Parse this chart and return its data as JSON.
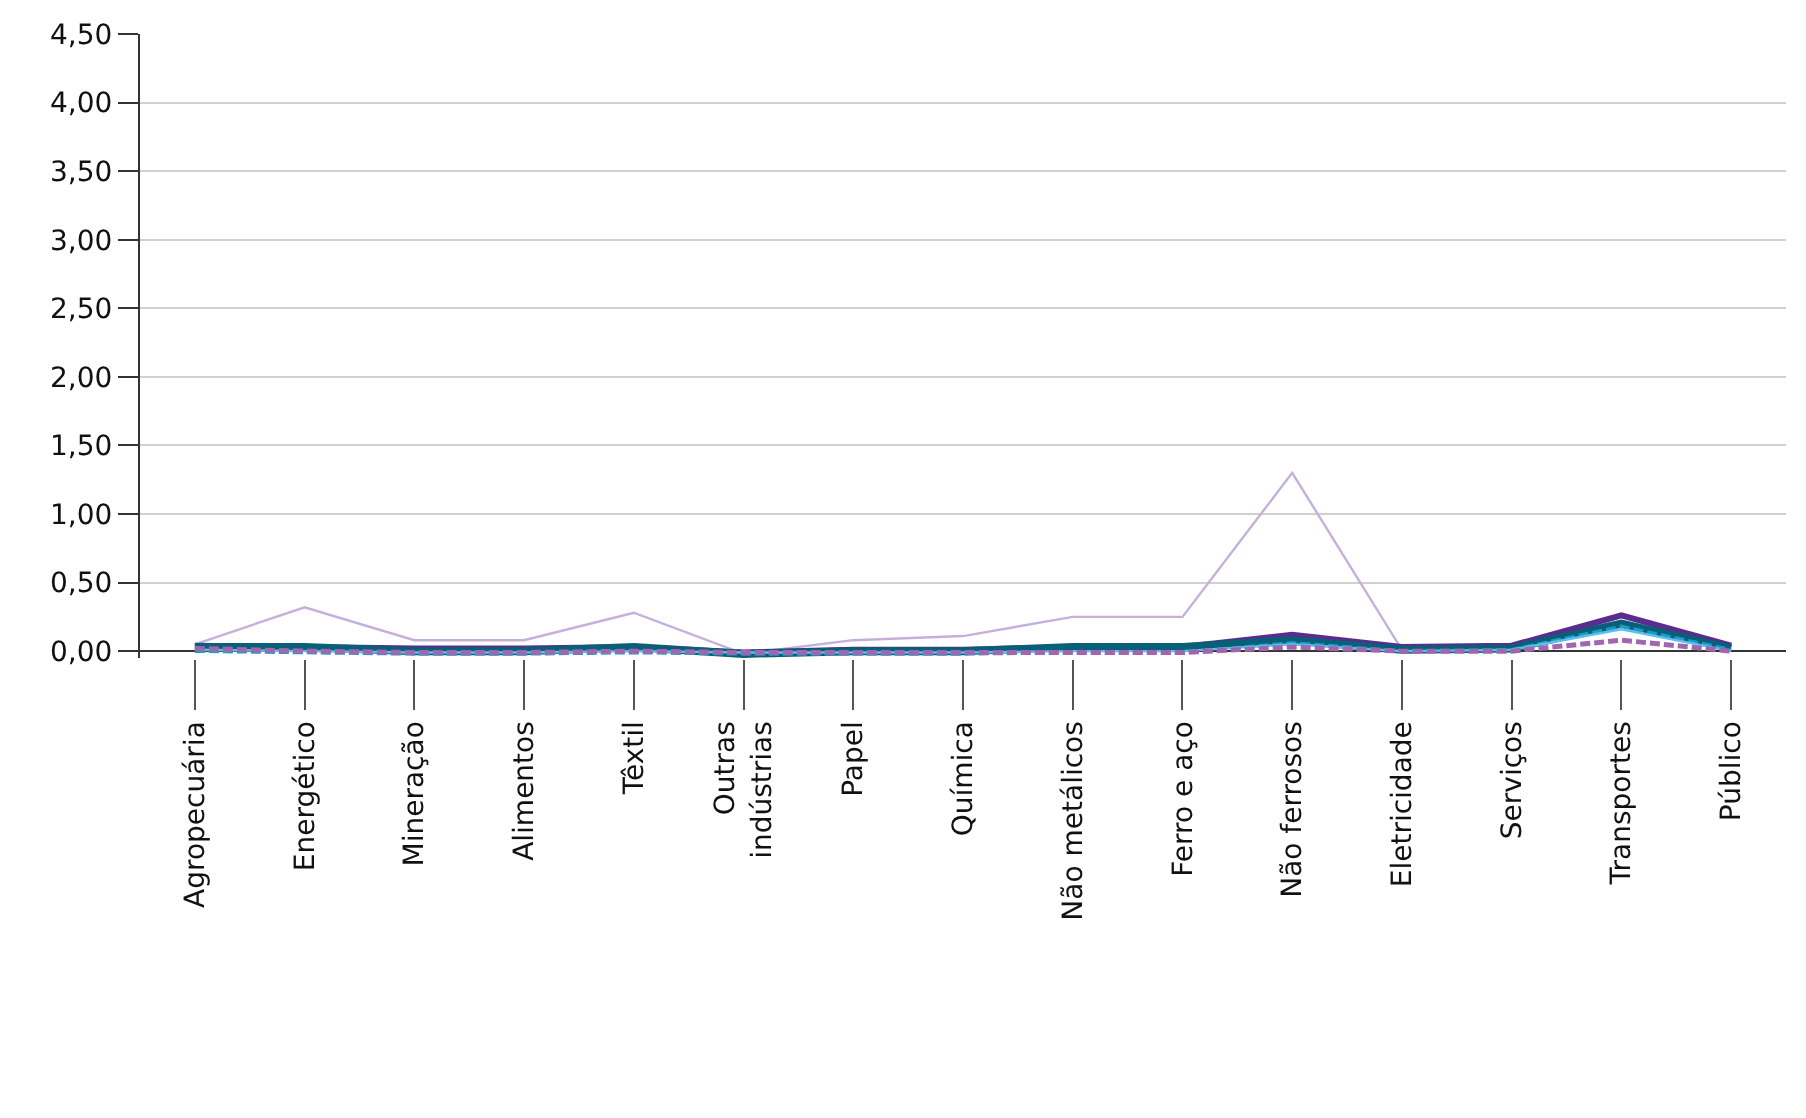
{
  "chart_data": {
    "type": "line",
    "categories": [
      "Agropecuária",
      "Energético",
      "Mineração",
      "Alimentos",
      "Têxtil",
      "Outras indústrias",
      "Papel",
      "Química",
      "Não metálicos",
      "Ferro e aço",
      "Não ferrosos",
      "Eletricidade",
      "Serviços",
      "Transportes",
      "Público"
    ],
    "series": [
      {
        "color": "#c5b0dc",
        "values": [
          0.05,
          0.32,
          0.08,
          0.08,
          0.28,
          -0.02,
          0.08,
          0.11,
          0.25,
          0.25,
          1.3,
          0.01,
          0.05,
          0.22,
          0.01
        ]
      },
      {
        "color": "#5b2c8f",
        "values": [
          0.04,
          0.03,
          0.02,
          0.02,
          0.03,
          -0.01,
          0.01,
          0.01,
          0.03,
          0.03,
          0.12,
          0.03,
          0.04,
          0.26,
          0.04
        ]
      },
      {
        "color": "#0a5f78",
        "values": [
          0.03,
          0.03,
          0.0,
          0.0,
          0.03,
          -0.02,
          0.0,
          0.0,
          0.03,
          0.03,
          0.08,
          0.01,
          0.02,
          0.2,
          0.02
        ]
      },
      {
        "color": "#1a9cc9",
        "line_style": "dashed",
        "values": [
          0.0,
          -0.01,
          -0.02,
          -0.02,
          -0.01,
          -0.02,
          -0.02,
          -0.02,
          -0.01,
          -0.01,
          0.06,
          0.0,
          0.01,
          0.18,
          0.01
        ]
      },
      {
        "color": "#5bc0eb",
        "values": [
          0.01,
          0.0,
          -0.01,
          -0.01,
          0.0,
          -0.01,
          -0.01,
          -0.01,
          0.0,
          0.0,
          0.05,
          0.0,
          0.01,
          0.16,
          0.0
        ]
      },
      {
        "color": "#a066b0",
        "line_style": "dashed",
        "values": [
          0.02,
          0.0,
          -0.01,
          -0.01,
          0.0,
          -0.01,
          -0.01,
          -0.01,
          -0.01,
          -0.01,
          0.03,
          0.0,
          0.0,
          0.08,
          0.0
        ]
      }
    ],
    "ylim": [
      -0.05,
      4.5
    ],
    "yticks": [
      {
        "value": 0,
        "label": "0,00"
      },
      {
        "value": 0.5,
        "label": "0,50"
      },
      {
        "value": 1,
        "label": "1,00"
      },
      {
        "value": 1.5,
        "label": "1,50"
      },
      {
        "value": 2,
        "label": "2,00"
      },
      {
        "value": 2.5,
        "label": "2,50"
      },
      {
        "value": 3,
        "label": "3,00"
      },
      {
        "value": 3.5,
        "label": "3,50"
      },
      {
        "value": 4,
        "label": "4,00"
      },
      {
        "value": 4.5,
        "label": "4,50"
      }
    ],
    "grid": "y",
    "marker": "none"
  }
}
